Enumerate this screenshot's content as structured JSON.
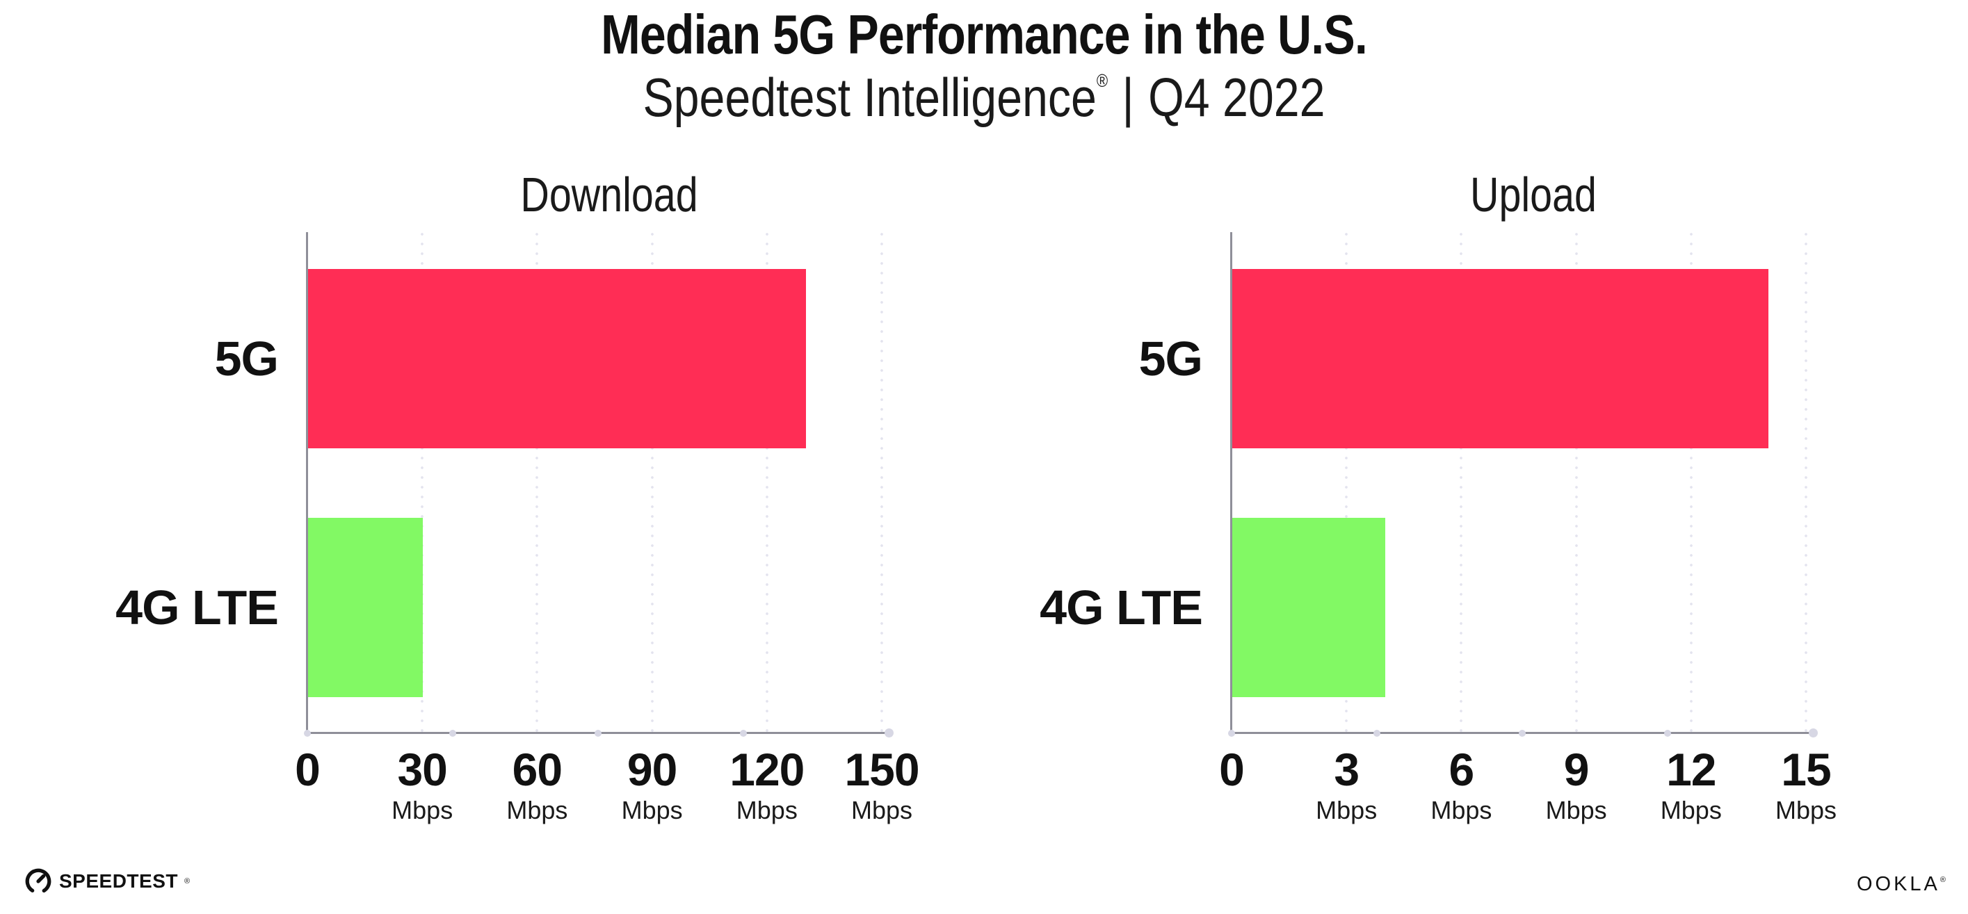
{
  "header": {
    "title": "Median 5G Performance in the U.S.",
    "subtitle_brand": "Speedtest Intelligence",
    "subtitle_reg": "®",
    "subtitle_sep": "|",
    "subtitle_period": "Q4 2022"
  },
  "chart_data": [
    {
      "type": "bar",
      "orientation": "horizontal",
      "title": "Download",
      "categories": [
        "5G",
        "4G LTE"
      ],
      "values": [
        130,
        30
      ],
      "unit": "Mbps",
      "xlim": [
        0,
        150
      ],
      "xticks": [
        0,
        30,
        60,
        90,
        120,
        150
      ],
      "bar_colors": [
        "#FF2D55",
        "#82F964"
      ],
      "grid": "dotted-vertical-gridlines",
      "legend": "none"
    },
    {
      "type": "bar",
      "orientation": "horizontal",
      "title": "Upload",
      "categories": [
        "5G",
        "4G LTE"
      ],
      "values": [
        14,
        4
      ],
      "unit": "Mbps",
      "xlim": [
        0,
        15
      ],
      "xticks": [
        0,
        3,
        6,
        9,
        12,
        15
      ],
      "bar_colors": [
        "#FF2D55",
        "#82F964"
      ],
      "grid": "dotted-vertical-gridlines",
      "legend": "none"
    }
  ],
  "footer": {
    "speedtest_logo_text": "SPEEDTEST",
    "speedtest_reg": "®",
    "ookla_logo_text": "OOKLA",
    "ookla_reg": "®"
  },
  "colors": {
    "bar_5g": "#FF2D55",
    "bar_4g_lte": "#82F964",
    "gridline": "#E3E3EE",
    "axis_line": "#8F8F99",
    "axis_dot": "#D7D7E4",
    "text": "#111111"
  }
}
